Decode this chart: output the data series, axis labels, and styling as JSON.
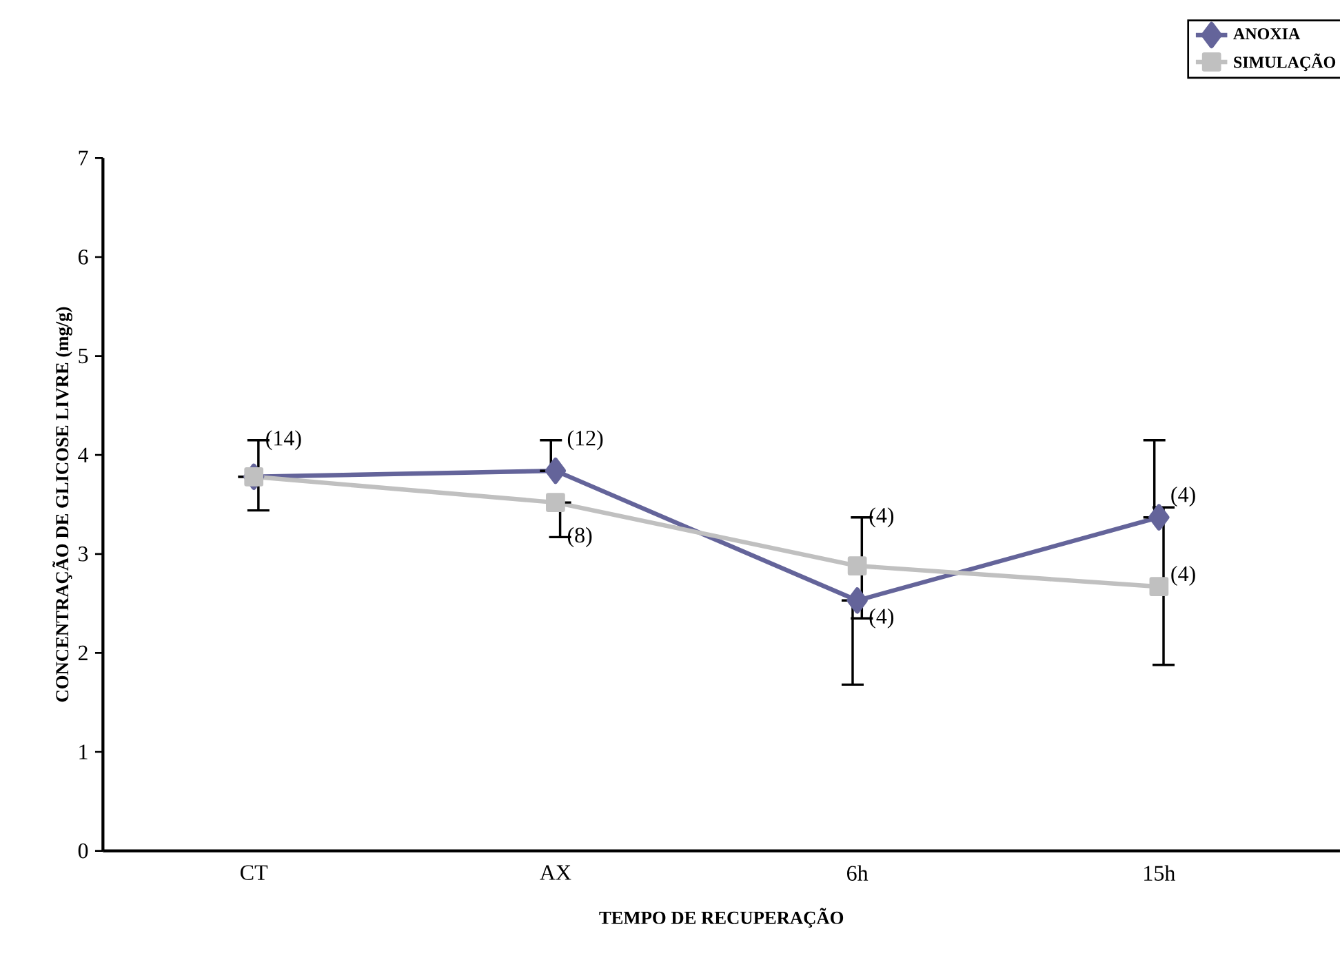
{
  "chart_data": {
    "type": "line",
    "xlabel": "TEMPO DE RECUPERAÇÃO",
    "ylabel": "CONCENTRAÇÃO DE GLICOSE LIVRE (mg/g)",
    "categories": [
      "CT",
      "AX",
      "6h",
      "15h"
    ],
    "series": [
      {
        "name": "ANOXIA",
        "color": "#64649a",
        "marker": "diamond",
        "values": [
          3.78,
          3.84,
          2.53,
          3.37
        ],
        "errors": [
          null,
          [
            3.84,
            4.15
          ],
          [
            1.68,
            2.53
          ],
          [
            3.37,
            4.15
          ]
        ]
      },
      {
        "name": "SIMULAÇÃO",
        "color": "#c0c0c0",
        "marker": "square",
        "values": [
          3.78,
          3.52,
          2.88,
          2.67
        ],
        "errors": [
          [
            3.44,
            4.15
          ],
          [
            3.17,
            3.52
          ],
          [
            2.35,
            3.37
          ],
          [
            1.88,
            3.47
          ]
        ]
      }
    ],
    "ylim": [
      0,
      7
    ],
    "yticks": [
      0,
      1,
      2,
      3,
      4,
      5,
      6,
      7
    ],
    "grid": false,
    "legend": "top right",
    "annotations": [
      {
        "text": "(14)",
        "x": "CT",
        "y": 4.15
      },
      {
        "text": "(12)",
        "x": "AX",
        "y": 4.15
      },
      {
        "text": "(8)",
        "x": "AX",
        "y": 3.17
      },
      {
        "text": "(4)",
        "x": "6h",
        "y": 3.37
      },
      {
        "text": "(4)",
        "x": "6h",
        "y": 2.35
      },
      {
        "text": "(4)",
        "x": "15h",
        "y": 3.58
      },
      {
        "text": "(4)",
        "x": "15h",
        "y": 2.78
      }
    ]
  }
}
